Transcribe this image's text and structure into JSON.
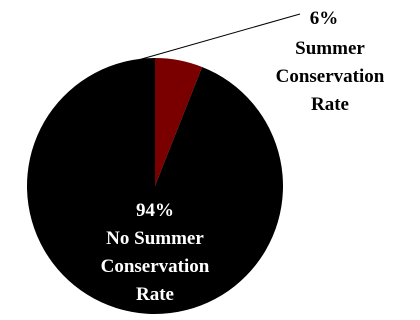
{
  "chart_data": {
    "type": "pie",
    "slices": [
      {
        "percent_label": "6%",
        "label_lines": [
          "Summer",
          "Conservation",
          "Rate"
        ],
        "value": 6,
        "color": "#7a0000"
      },
      {
        "percent_label": "94%",
        "label_lines": [
          "No Summer",
          "Conservation",
          "Rate"
        ],
        "value": 94,
        "color": "#000000"
      }
    ],
    "legend": "none",
    "label_colors": {
      "outside": "#000000",
      "inside": "#ffffff"
    }
  }
}
